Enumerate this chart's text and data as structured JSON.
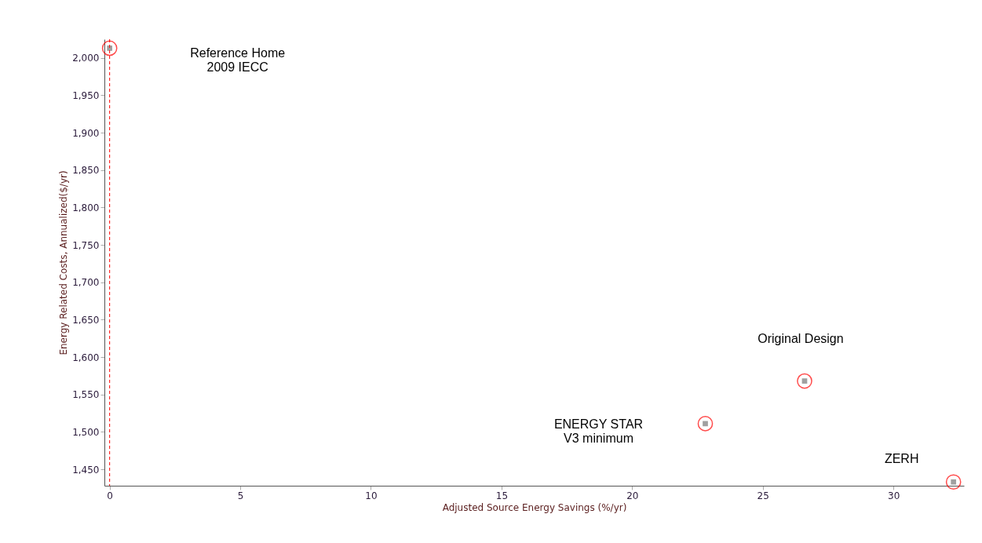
{
  "chart_data": {
    "type": "scatter",
    "xlabel": "Adjusted Source Energy Savings (%/yr)",
    "ylabel": "Energy Related Costs, Annualized($/yr)",
    "x": [
      0,
      22.8,
      26.6,
      32.3
    ],
    "series": [
      {
        "marker": "square",
        "color": "#a0a0a0",
        "values": [
          2013,
          1511,
          1568,
          1433
        ]
      },
      {
        "marker": "circle",
        "color": "#ff0000",
        "values": [
          2013,
          1511,
          1568,
          1433
        ]
      }
    ],
    "xlim": [
      -0.2,
      32.7
    ],
    "xticks": [
      0,
      5,
      10,
      15,
      20,
      25,
      30
    ],
    "ylim": [
      1428,
      2025
    ],
    "yticks": [
      {
        "value": 1450,
        "label": "1,450"
      },
      {
        "value": 1500,
        "label": "1,500"
      },
      {
        "value": 1550,
        "label": "1,550"
      },
      {
        "value": 1600,
        "label": "1,600"
      },
      {
        "value": 1650,
        "label": "1,650"
      },
      {
        "value": 1700,
        "label": "1,700"
      },
      {
        "value": 1750,
        "label": "1,750"
      },
      {
        "value": 1800,
        "label": "1,800"
      },
      {
        "value": 1850,
        "label": "1,850"
      },
      {
        "value": 1900,
        "label": "1,900"
      },
      {
        "value": 1950,
        "label": "1,950"
      },
      {
        "value": 2000,
        "label": "2,000"
      }
    ],
    "ref_lines": [
      {
        "axis": "x",
        "value": 0,
        "color": "#ff0000",
        "line_style": "dashed"
      }
    ],
    "annotations": [
      "Reference Home\n2009 IECC",
      "ENERGY STAR\nV3 minimum",
      "Original Design",
      "ZERH"
    ],
    "grid": false
  }
}
